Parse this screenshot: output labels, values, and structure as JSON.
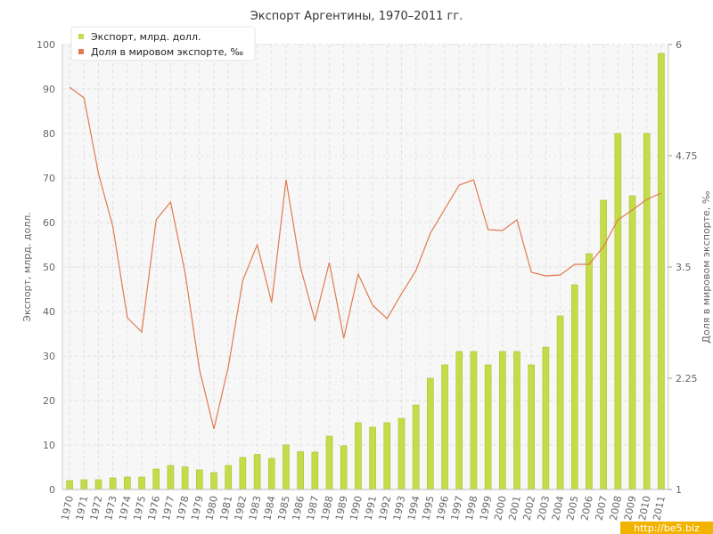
{
  "chart_data": {
    "type": "bar",
    "title": "Экспорт Аргентины, 1970–2011 гг.",
    "ylabel": "Экспорт, млрд. долл.",
    "y2label": "Доля в мировом экспорте, ‰",
    "ylim": [
      0,
      100
    ],
    "y2lim": [
      1,
      6
    ],
    "yticks": [
      0,
      10,
      20,
      30,
      40,
      50,
      60,
      70,
      80,
      90,
      100
    ],
    "y2ticks": [
      "1",
      "2.25",
      "3.5",
      "4.75",
      "6"
    ],
    "grid": true,
    "legend_position": "top-left",
    "categories": [
      "1970",
      "1971",
      "1972",
      "1973",
      "1974",
      "1975",
      "1976",
      "1977",
      "1978",
      "1979",
      "1980",
      "1981",
      "1982",
      "1983",
      "1984",
      "1985",
      "1986",
      "1987",
      "1988",
      "1989",
      "1990",
      "1991",
      "1992",
      "1993",
      "1994",
      "1995",
      "1996",
      "1997",
      "1998",
      "1999",
      "2000",
      "2001",
      "2002",
      "2003",
      "2004",
      "2005",
      "2006",
      "2007",
      "2008",
      "2009",
      "2010",
      "2011"
    ],
    "series": [
      {
        "name": "Экспорт, млрд. долл.",
        "type": "bar",
        "axis": "left",
        "color": "#c5dc4a",
        "values": [
          2,
          2.2,
          2.2,
          2.6,
          2.8,
          2.8,
          4.6,
          5.4,
          5.1,
          4.4,
          3.8,
          5.4,
          7.2,
          7.9,
          7,
          10,
          8.5,
          8.4,
          12,
          9.8,
          15,
          14,
          15,
          16,
          19,
          25,
          28,
          31,
          31,
          28,
          31,
          31,
          28,
          32,
          39,
          46,
          53,
          65,
          80,
          66,
          80,
          98
        ]
      },
      {
        "name": "Доля в мировом экспорте, ‰",
        "type": "line",
        "axis": "right",
        "color": "#e07a50",
        "values": [
          5.52,
          5.4,
          4.55,
          3.95,
          2.93,
          2.77,
          4.03,
          4.23,
          3.44,
          2.35,
          1.68,
          2.38,
          3.35,
          3.75,
          3.1,
          4.48,
          3.5,
          2.9,
          3.55,
          2.7,
          3.42,
          3.07,
          2.92,
          3.2,
          3.46,
          3.88,
          4.15,
          4.42,
          4.48,
          3.92,
          3.91,
          4.03,
          3.44,
          3.4,
          3.41,
          3.53,
          3.53,
          3.73,
          4.03,
          4.14,
          4.26,
          4.33
        ]
      }
    ]
  },
  "colors": {
    "bar_fill": "#c5dc4a",
    "bar_edge": "#a9c22c",
    "line": "#e07a50",
    "plot_background": "#f7f7f7",
    "grid": "#e2e2e2"
  },
  "watermark": "http://be5.biz"
}
